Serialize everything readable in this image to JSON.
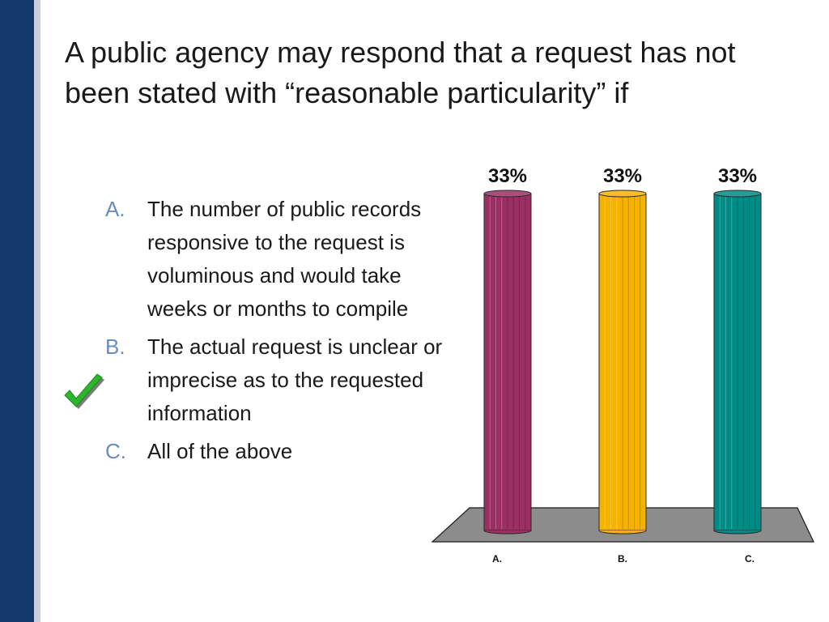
{
  "slide": {
    "title": "A public agency may respond that a request has not been stated with “reasonable particularity” if"
  },
  "answers": [
    {
      "letter": "A.",
      "text": "The number of public records responsive to the request is voluminous and would take weeks or months to compile",
      "correct": false
    },
    {
      "letter": "B.",
      "text": "The actual request is unclear or imprecise as to the requested information",
      "correct": true
    },
    {
      "letter": "C.",
      "text": "All of the above",
      "correct": false
    }
  ],
  "check_icon": "green-checkmark-icon",
  "colors": {
    "sidebar_dark": "#143a6b",
    "sidebar_light": "#c7d0dc",
    "letter": "#6d8bbd",
    "check": "#2db52d",
    "floor": "#8c8c8c"
  },
  "chart_data": {
    "type": "bar",
    "categories": [
      "A.",
      "B.",
      "C."
    ],
    "values": [
      33,
      33,
      33
    ],
    "data_labels": [
      "33%",
      "33%",
      "33%"
    ],
    "colors": [
      "#9b2f62",
      "#f5b300",
      "#008b84"
    ],
    "ylim": [
      0,
      33
    ],
    "title": "",
    "xlabel": "",
    "ylabel": "",
    "grid": false,
    "legend": "none"
  }
}
